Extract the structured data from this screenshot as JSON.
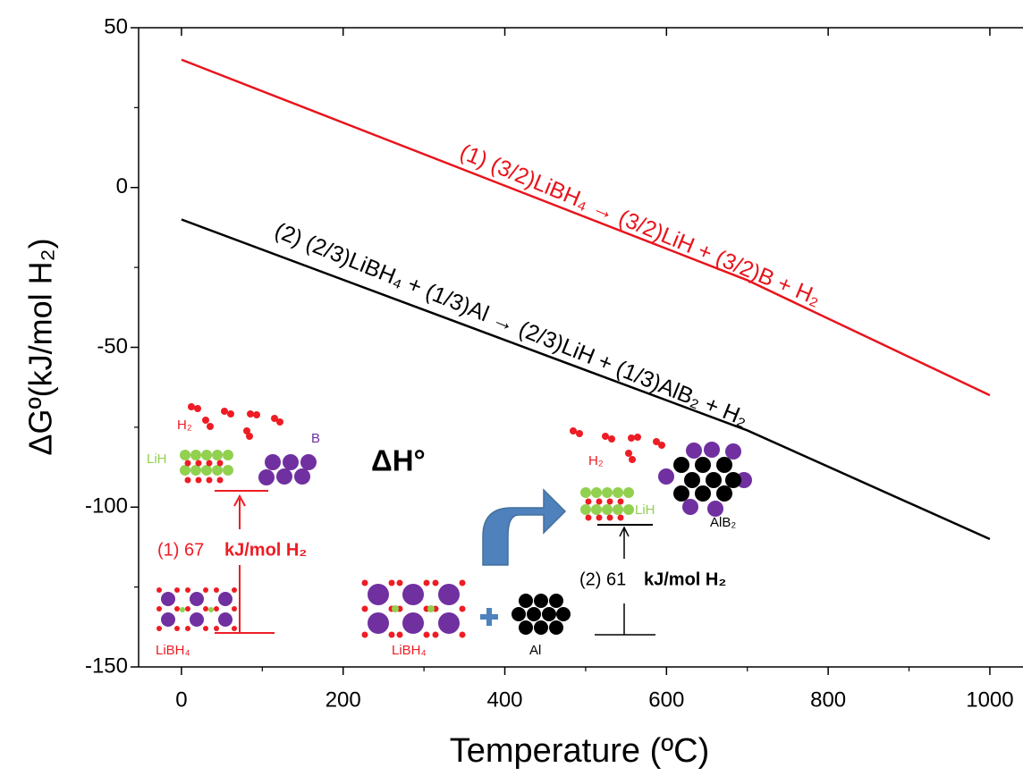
{
  "chart_data": {
    "type": "line",
    "x_label": "Temperature (ºC)",
    "y_label": "ΔGº(kJ/mol H₂)",
    "x": [
      0,
      700,
      1000
    ],
    "series": [
      {
        "name": "(1) (3/2)LiBH₄ → (3/2)LiH + (3/2)B + H₂",
        "color": "#e8141c",
        "values": [
          40,
          -29,
          -65
        ]
      },
      {
        "name": "(2) (2/3)LiBH₄ + (1/3)Al → (2/3)LiH + (1/3)AlB₂ + H₂",
        "color": "#000000",
        "values": [
          -10,
          -76,
          -110
        ]
      }
    ],
    "xlim": [
      -53,
      1041
    ],
    "ylim": [
      -150,
      50
    ],
    "xticks": [
      0,
      200,
      400,
      600,
      800,
      1000
    ],
    "yticks": [
      -150,
      -100,
      -50,
      0,
      50
    ],
    "xminorticks": [
      100,
      300,
      500,
      700,
      900
    ],
    "yminorticks": [
      -125,
      -75,
      -25,
      25
    ],
    "annotations": {
      "delta_h": "ΔH°",
      "h2_left": "H₂",
      "b_left": "B",
      "lih_left": "LiH",
      "libh4_left": "LiBH₄",
      "energy_1_value": "(1) 67",
      "energy_1_unit": "kJ/mol H₂",
      "libh4_right": "LiBH₄",
      "al_right": "Al",
      "h2_right": "H₂",
      "lih_right": "LiH",
      "alb2_right": "AlB₂",
      "energy_2_value": "(2) 61",
      "energy_2_unit": "kJ/mol H₂"
    }
  }
}
